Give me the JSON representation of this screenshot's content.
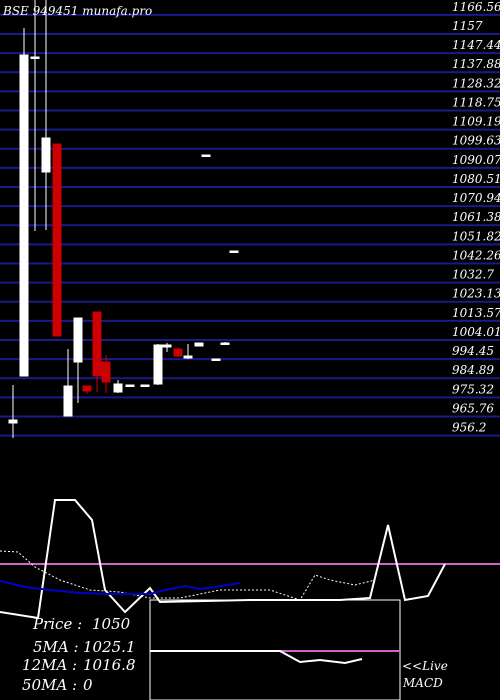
{
  "header": {
    "title": "BSE 949451 munafa.pro"
  },
  "colors": {
    "background": "#000000",
    "gridline": "#1a1a8c",
    "up_candle": "#ffffff",
    "down_candle": "#cc0000",
    "axis_text": "#ffffff",
    "ma_line": "#0000cc",
    "signal_line": "#cc66cc",
    "oscillator_line": "#ffffff"
  },
  "chart_data": [
    {
      "type": "candlestick",
      "title": "BSE 949451 munafa.pro",
      "ylim": [
        951.0,
        1171.0
      ],
      "y_ticks": [
        "1166.56",
        "1157",
        "1147.44",
        "1137.88",
        "1128.32",
        "1118.75",
        "1109.19",
        "1099.63",
        "1090.07",
        "1080.51",
        "1070.94",
        "1061.38",
        "1051.82",
        "1042.26",
        "1032.7",
        "1023.13",
        "1013.57",
        "1004.01",
        "994.45",
        "984.89",
        "975.32",
        "965.76",
        "956.2"
      ],
      "tick_values": [
        1166.56,
        1157,
        1147.44,
        1137.88,
        1128.32,
        1118.75,
        1109.19,
        1099.63,
        1090.07,
        1080.51,
        1070.94,
        1061.38,
        1051.82,
        1042.26,
        1032.7,
        1023.13,
        1013.57,
        1004.01,
        994.45,
        984.89,
        975.32,
        965.76,
        956.2
      ],
      "candles": [
        {
          "open": 961.0,
          "close": 959.5,
          "high": 978.5,
          "low": 952.0,
          "bull": true
        },
        {
          "open": 983.0,
          "close": 1143.5,
          "high": 1157.0,
          "low": 983.0,
          "bull": true
        },
        {
          "open": 1142.5,
          "close": 1142.5,
          "high": 1171.0,
          "low": 1055.5,
          "bull": true
        },
        {
          "open": 1085.0,
          "close": 1102.0,
          "high": 1171.0,
          "low": 1056.0,
          "bull": true
        },
        {
          "open": 1099.0,
          "close": 1003.0,
          "high": 1099.0,
          "low": 1003.0,
          "bull": false
        },
        {
          "open": 963.0,
          "close": 978.0,
          "high": 996.5,
          "low": 963.0,
          "bull": true
        },
        {
          "open": 990.0,
          "close": 1012.0,
          "high": 1012.0,
          "low": 969.5,
          "bull": true
        },
        {
          "open": 978.0,
          "close": 975.5,
          "high": 978.0,
          "low": 974.0,
          "bull": false
        },
        {
          "open": 1015.0,
          "close": 983.0,
          "high": 1015.0,
          "low": 975.0,
          "bull": false
        },
        {
          "open": 980.0,
          "close": 990.0,
          "high": 993.5,
          "low": 974.5,
          "bull": false
        },
        {
          "open": 975.0,
          "close": 979.0,
          "high": 981.0,
          "low": 974.5,
          "bull": true
        },
        {
          "open": 978.5,
          "close": 978.5,
          "high": 978.5,
          "low": 978.5,
          "bull": true
        },
        {
          "open": 978.5,
          "close": 978.5,
          "high": 978.5,
          "low": 978.5,
          "bull": true
        },
        {
          "open": 979.0,
          "close": 998.5,
          "high": 999.0,
          "low": 978.5,
          "bull": true
        },
        {
          "open": 997.5,
          "close": 998.5,
          "high": 999.5,
          "low": 995.0,
          "bull": true
        },
        {
          "open": 993.0,
          "close": 996.5,
          "high": 997.5,
          "low": 992.5,
          "bull": false
        },
        {
          "open": 992.0,
          "close": 993.0,
          "high": 999.0,
          "low": 991.5,
          "bull": true
        },
        {
          "open": 998.0,
          "close": 999.5,
          "high": 999.5,
          "low": 998.0,
          "bull": true
        },
        {
          "open": 1093.5,
          "close": 1093.5,
          "high": 1093.5,
          "low": 1093.5,
          "bull": true
        },
        {
          "open": 991.5,
          "close": 991.5,
          "high": 991.5,
          "low": 991.5,
          "bull": true
        },
        {
          "open": 999.5,
          "close": 999.5,
          "high": 1000.0,
          "low": 999.0,
          "bull": true
        },
        {
          "open": 1045.5,
          "close": 1045.5,
          "high": 1045.5,
          "low": 1045.5,
          "bull": true
        }
      ]
    },
    {
      "type": "line",
      "title": "",
      "ylim": [
        0,
        100
      ],
      "series": [
        {
          "values": [
            94,
            95,
            88,
            89,
            87,
            88,
            87,
            86,
            85,
            85,
            84,
            84,
            84,
            83,
            84,
            85,
            84
          ]
        },
        {
          "values": [
            94,
            91,
            92,
            89,
            88,
            86
          ]
        },
        {
          "values": [
            66,
            62,
            65,
            64,
            61,
            62,
            61,
            61,
            62,
            62,
            64,
            66,
            72,
            77,
            83,
            86,
            94,
            87,
            86,
            78,
            71,
            61,
            53,
            52,
            71
          ]
        },
        {
          "values": [
            78,
            77,
            99,
            85,
            97,
            95,
            64,
            56,
            67,
            67,
            63,
            78,
            57,
            68,
            62,
            65,
            59,
            57
          ]
        },
        {
          "values": [
            53,
            54,
            54,
            54,
            53,
            53,
            55,
            56,
            56,
            58
          ]
        },
        {
          "values": [
            78,
            78,
            76,
            78,
            81,
            85,
            85,
            84,
            84,
            83,
            82,
            81,
            78,
            80,
            81,
            82,
            84,
            83,
            84,
            88,
            92,
            92,
            93,
            93,
            91,
            92,
            92,
            91,
            92,
            92,
            92,
            92,
            89,
            89,
            89,
            88,
            89,
            85,
            84,
            81,
            80,
            77
          ]
        }
      ]
    }
  ],
  "info": {
    "price_label": "Price   :",
    "price_value": "1050",
    "ma5_label": "5MA :",
    "ma5_value": "1025.1",
    "ma12_label": "12MA :",
    "ma12_value": "1016.8",
    "ma50_label": "50MA :",
    "ma50_value": "0"
  },
  "macd": {
    "live_label": "<<Live",
    "macd_label": "MACD"
  }
}
